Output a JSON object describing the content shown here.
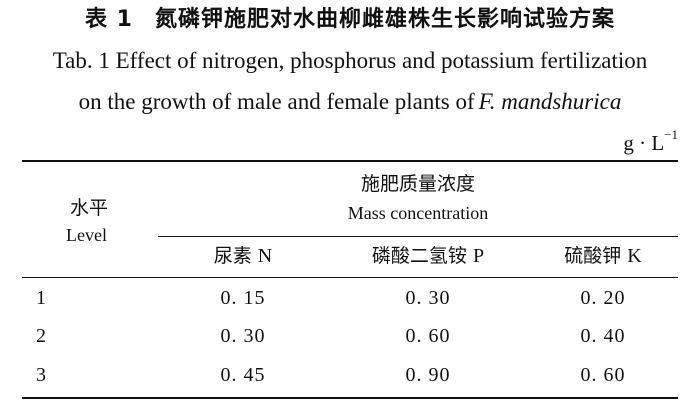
{
  "title_cn": {
    "tab_no": "表 1",
    "text": "氮磷钾施肥对水曲柳雌雄株生长影响试验方案"
  },
  "title_en": {
    "line1": "Tab. 1 Effect of nitrogen, phosphorus and potassium fertilization",
    "line2_prefix": "on the growth of male and female plants of",
    "species": "F.  mandshurica"
  },
  "unit": {
    "base": "g · L",
    "exp": "−1"
  },
  "table": {
    "level_header": {
      "cn": "水平",
      "en": "Level"
    },
    "group_header": {
      "cn": "施肥质量浓度",
      "en": "Mass concentration"
    },
    "columns": [
      {
        "cn": "尿素",
        "sym": "N"
      },
      {
        "cn": "磷酸二氢铵",
        "sym": "P"
      },
      {
        "cn": "硫酸钾",
        "sym": "K"
      }
    ],
    "rows": [
      {
        "level": "1",
        "values": [
          "0. 15",
          "0. 30",
          "0. 20"
        ]
      },
      {
        "level": "2",
        "values": [
          "0. 30",
          "0. 60",
          "0. 40"
        ]
      },
      {
        "level": "3",
        "values": [
          "0. 45",
          "0. 90",
          "0. 60"
        ]
      }
    ]
  }
}
